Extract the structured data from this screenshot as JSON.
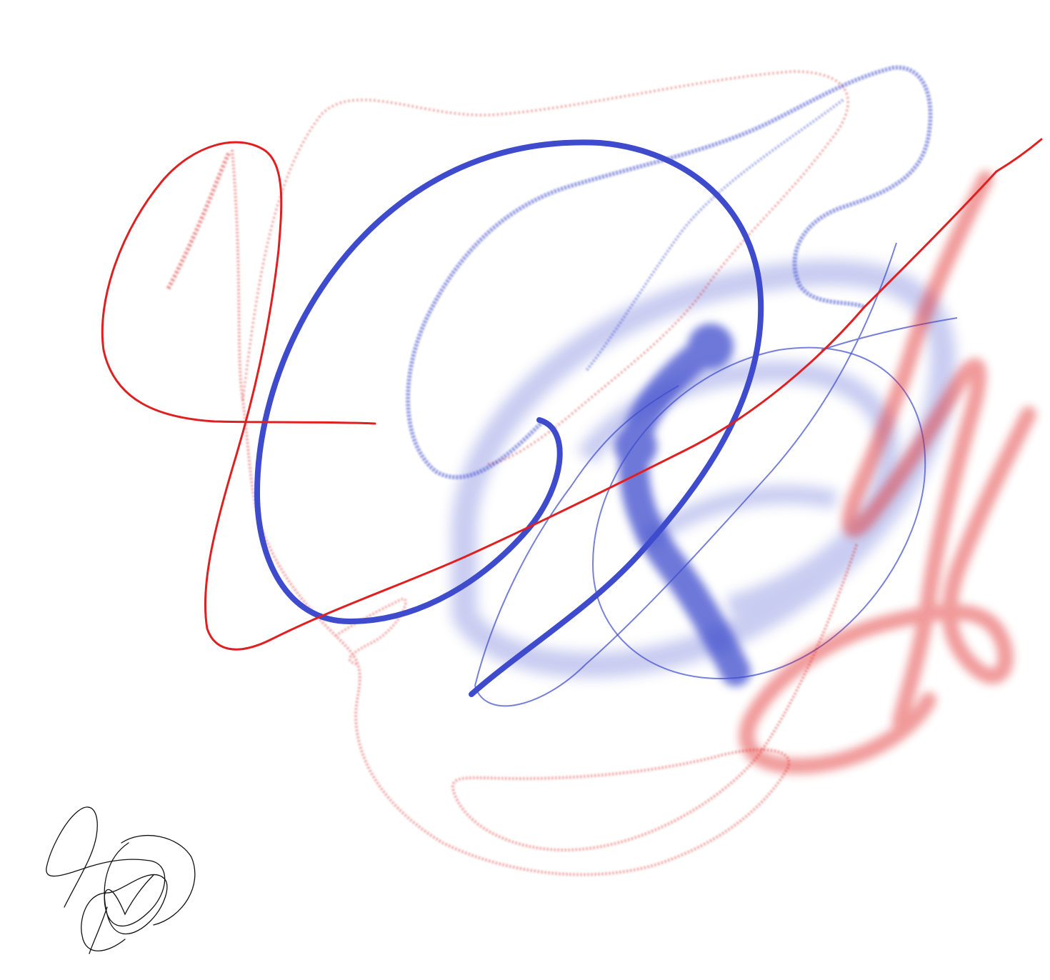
{
  "canvas": {
    "background": "#ffffff"
  },
  "colors": {
    "red": "#e02020",
    "red_soft": "#ec4040",
    "blue": "#3d4bcc",
    "blue_soft": "#5060d4",
    "signature": "#111111"
  },
  "strokes": [
    {
      "id": "red-dotted-outline",
      "color": "red",
      "brush": "pencil-spray"
    },
    {
      "id": "red-dotted-small",
      "color": "red",
      "brush": "pencil-spray"
    },
    {
      "id": "red-loop-pen",
      "color": "red",
      "brush": "pen"
    },
    {
      "id": "red-diagonal-pen",
      "color": "red",
      "brush": "pen"
    },
    {
      "id": "blue-dotted-loop",
      "color": "blue",
      "brush": "pencil-spray"
    },
    {
      "id": "blue-airbrush-ring",
      "color": "blue",
      "brush": "airbrush"
    },
    {
      "id": "blue-blob-stroke",
      "color": "blue",
      "brush": "airbrush"
    },
    {
      "id": "blue-thin-ellipse",
      "color": "blue",
      "brush": "thin-pen"
    },
    {
      "id": "blue-thin-lines",
      "color": "blue",
      "brush": "thin-pen"
    },
    {
      "id": "blue-bold-loop",
      "color": "blue",
      "brush": "marker"
    },
    {
      "id": "red-airbrush-scribble",
      "color": "red",
      "brush": "airbrush"
    },
    {
      "id": "signature",
      "color": "signature",
      "brush": "fine-pen"
    }
  ]
}
